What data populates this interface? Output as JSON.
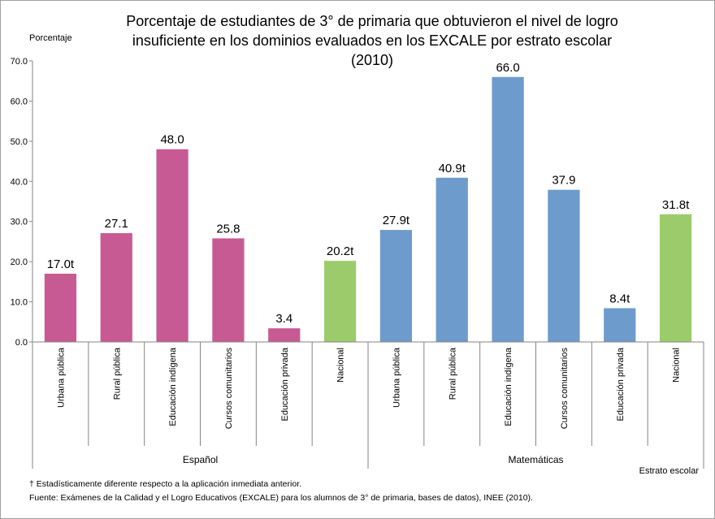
{
  "chart_data": {
    "type": "bar",
    "title_lines": [
      "Porcentaje de estudiantes de 3° de primaria que obtuvieron el nivel de logro",
      "insuficiente en los dominios evaluados en los EXCALE por estrato escolar",
      "(2010)"
    ],
    "ylabel": "Porcentaje",
    "xlabel": "Estrato escolar",
    "ylim": [
      0,
      70
    ],
    "yticks": [
      "0.0",
      "10.0",
      "20.0",
      "30.0",
      "40.0",
      "50.0",
      "60.0",
      "70.0"
    ],
    "grid": false,
    "groups": [
      {
        "name": "Español",
        "bars": [
          {
            "category": "Urbana pública",
            "value": 17.0,
            "label": "17.0t",
            "color": "#c85a93"
          },
          {
            "category": "Rural pública",
            "value": 27.1,
            "label": "27.1",
            "color": "#c85a93"
          },
          {
            "category": "Educación indígena",
            "value": 48.0,
            "label": "48.0",
            "color": "#c85a93"
          },
          {
            "category": "Cursos comunitarios",
            "value": 25.8,
            "label": "25.8",
            "color": "#c85a93"
          },
          {
            "category": "Educación privada",
            "value": 3.4,
            "label": "3.4",
            "color": "#c85a93"
          },
          {
            "category": "Nacional",
            "value": 20.2,
            "label": "20.2t",
            "color": "#9bcb6b"
          }
        ]
      },
      {
        "name": "Matemáticas",
        "bars": [
          {
            "category": "Urbana pública",
            "value": 27.9,
            "label": "27.9t",
            "color": "#6d9bcb"
          },
          {
            "category": "Rural pública",
            "value": 40.9,
            "label": "40.9t",
            "color": "#6d9bcb"
          },
          {
            "category": "Educación indígena",
            "value": 66.0,
            "label": "66.0",
            "color": "#6d9bcb"
          },
          {
            "category": "Cursos comunitarios",
            "value": 37.9,
            "label": "37.9",
            "color": "#6d9bcb"
          },
          {
            "category": "Educación privada",
            "value": 8.4,
            "label": "8.4t",
            "color": "#6d9bcb"
          },
          {
            "category": "Nacional",
            "value": 31.8,
            "label": "31.8t",
            "color": "#9bcb6b"
          }
        ]
      }
    ]
  },
  "footnotes": [
    "† Estadísticamente diferente respecto a la aplicación inmediata anterior.",
    "Fuente:  Exámenes de la Calidad y el Logro Educativos (EXCALE)  para los alumnos de  3° de primaria, bases de datos), INEE (2010)."
  ]
}
